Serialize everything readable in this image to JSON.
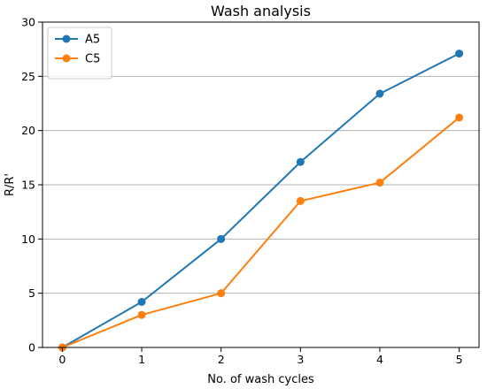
{
  "chart_data": {
    "type": "line",
    "title": "Wash analysis",
    "xlabel": "No. of wash cycles",
    "ylabel": "R/R'",
    "x": [
      0,
      1,
      2,
      3,
      4,
      5
    ],
    "xlim": [
      -0.25,
      5.25
    ],
    "ylim": [
      0,
      30
    ],
    "xticks": [
      "0",
      "1",
      "2",
      "3",
      "4",
      "5"
    ],
    "yticks": [
      "0",
      "5",
      "10",
      "15",
      "20",
      "25",
      "30"
    ],
    "grid": "horizontal",
    "legend_position": "top-left",
    "series": [
      {
        "name": "A5",
        "color": "#1f77b4",
        "values": [
          0,
          4.2,
          10,
          17.1,
          23.4,
          27.1
        ]
      },
      {
        "name": "C5",
        "color": "#ff7f0e",
        "values": [
          0,
          3,
          5,
          13.5,
          15.2,
          21.2
        ]
      }
    ]
  }
}
